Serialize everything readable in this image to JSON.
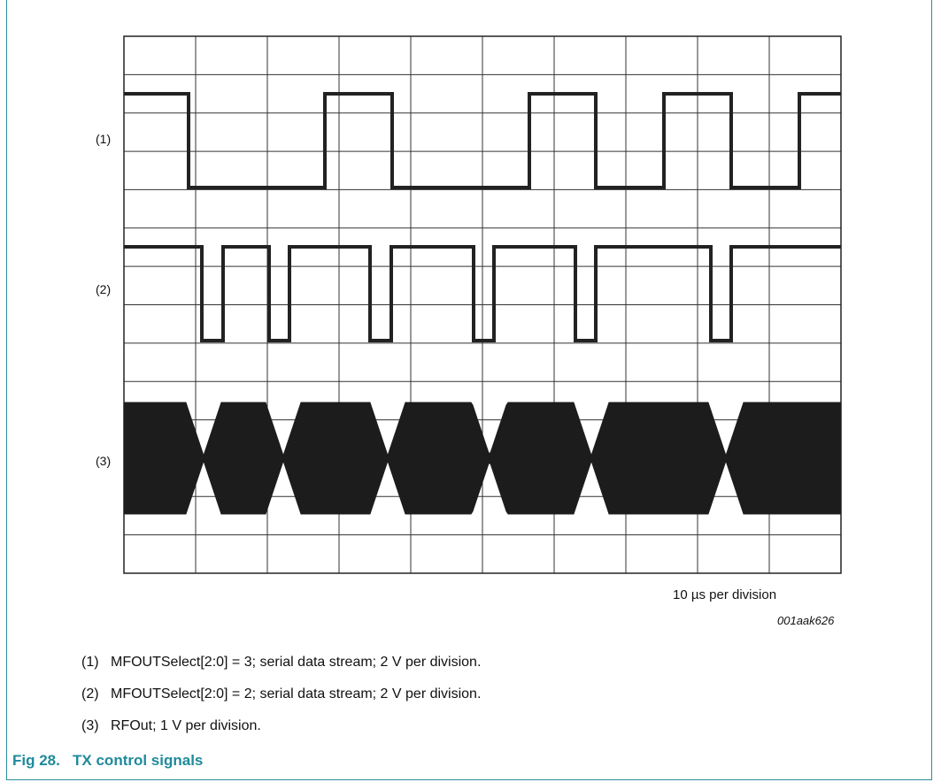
{
  "figure": {
    "trace_labels": [
      "(1)",
      "(2)",
      "(3)"
    ],
    "scale_note": "10 µs per division",
    "figure_id": "001aak626"
  },
  "notes": [
    {
      "marker": "(1)",
      "text": "MFOUTSelect[2:0] = 3; serial data stream; 2 V per division."
    },
    {
      "marker": "(2)",
      "text": "MFOUTSelect[2:0] = 2; serial data stream; 2 V per division."
    },
    {
      "marker": "(3)",
      "text": "RFOut; 1 V per division."
    }
  ],
  "caption": {
    "number": "Fig 28.",
    "title": "TX control signals"
  }
}
